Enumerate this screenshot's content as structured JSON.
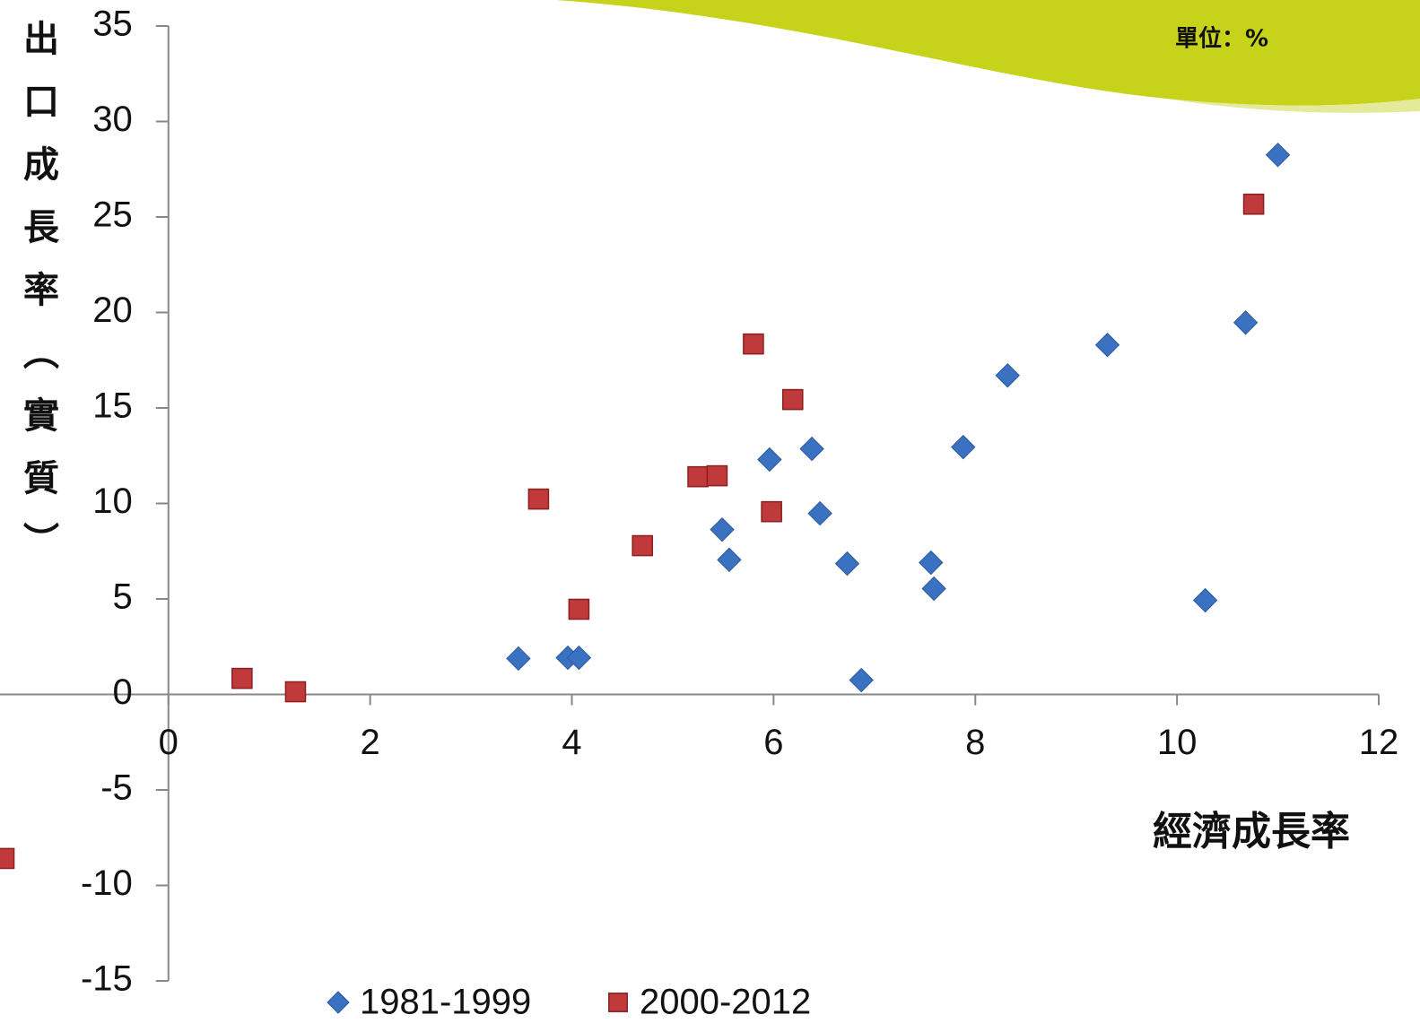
{
  "chart_data": {
    "type": "scatter",
    "unit_note": "單位：%",
    "y_label": "出口成長率（實質）",
    "x_label": "經濟成長率",
    "xlim": [
      -1.67,
      12
    ],
    "xticks": [
      0,
      2,
      4,
      6,
      8,
      10,
      12
    ],
    "ylim": [
      -15,
      35
    ],
    "yticks": [
      -15,
      -10,
      -5,
      0,
      5,
      10,
      15,
      20,
      25,
      30,
      35
    ],
    "series": [
      {
        "name": "1981-1999",
        "color": "#3b71c1",
        "marker": "diamond",
        "x": [
          3.47,
          3.96,
          4.07,
          5.49,
          5.56,
          5.96,
          6.38,
          6.46,
          6.73,
          6.87,
          7.56,
          7.59,
          7.88,
          8.32,
          9.31,
          10.28,
          10.68,
          11.0
        ],
        "values": [
          1.88,
          1.92,
          1.92,
          8.63,
          7.05,
          12.3,
          12.86,
          9.48,
          6.85,
          0.75,
          6.9,
          5.54,
          12.95,
          16.7,
          18.3,
          4.93,
          19.47,
          28.25
        ]
      },
      {
        "name": "2000-2012",
        "color": "#c0393b",
        "marker": "square",
        "x": [
          -1.63,
          0.73,
          1.26,
          3.67,
          4.07,
          4.7,
          5.25,
          5.44,
          5.8,
          5.98,
          6.19,
          10.76
        ],
        "values": [
          -8.59,
          0.84,
          0.14,
          10.23,
          4.46,
          7.79,
          11.4,
          11.45,
          18.35,
          9.57,
          15.44,
          25.67
        ]
      }
    ]
  }
}
